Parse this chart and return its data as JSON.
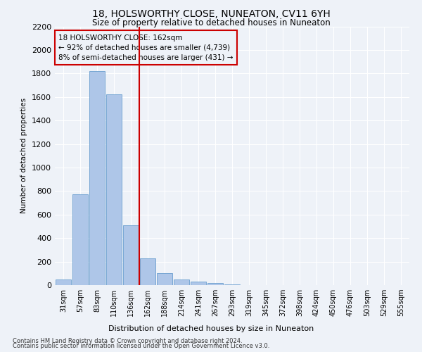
{
  "title": "18, HOLSWORTHY CLOSE, NUNEATON, CV11 6YH",
  "subtitle": "Size of property relative to detached houses in Nuneaton",
  "xlabel": "Distribution of detached houses by size in Nuneaton",
  "ylabel": "Number of detached properties",
  "bar_labels": [
    "31sqm",
    "57sqm",
    "83sqm",
    "110sqm",
    "136sqm",
    "162sqm",
    "188sqm",
    "214sqm",
    "241sqm",
    "267sqm",
    "293sqm",
    "319sqm",
    "345sqm",
    "372sqm",
    "398sqm",
    "424sqm",
    "450sqm",
    "476sqm",
    "503sqm",
    "529sqm",
    "555sqm"
  ],
  "bar_values": [
    50,
    770,
    1820,
    1620,
    510,
    230,
    100,
    47,
    30,
    15,
    5,
    0,
    0,
    0,
    0,
    0,
    0,
    0,
    0,
    0,
    0
  ],
  "bar_color": "#aec6e8",
  "bar_edge_color": "#6a9fcf",
  "vline_x": 4.5,
  "vline_color": "#cc0000",
  "annotation_text": "18 HOLSWORTHY CLOSE: 162sqm\n← 92% of detached houses are smaller (4,739)\n8% of semi-detached houses are larger (431) →",
  "annotation_box_color": "#cc0000",
  "ylim": [
    0,
    2200
  ],
  "yticks": [
    0,
    200,
    400,
    600,
    800,
    1000,
    1200,
    1400,
    1600,
    1800,
    2000,
    2200
  ],
  "footer_line1": "Contains HM Land Registry data © Crown copyright and database right 2024.",
  "footer_line2": "Contains public sector information licensed under the Open Government Licence v3.0.",
  "background_color": "#eef2f8",
  "grid_color": "#ffffff"
}
